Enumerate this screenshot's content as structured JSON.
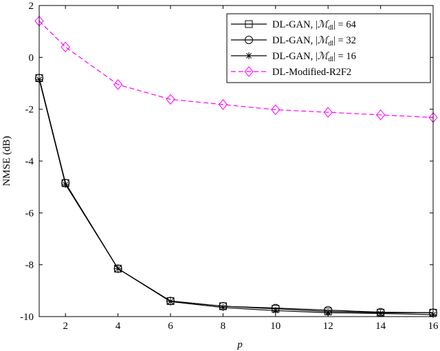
{
  "chart_data": {
    "type": "line",
    "x": [
      1,
      2,
      4,
      6,
      8,
      10,
      12,
      14,
      16
    ],
    "xlabel": "p",
    "ylabel": "NMSE (dB)",
    "xlim": [
      1,
      16
    ],
    "ylim": [
      -10,
      2
    ],
    "xticks": [
      2,
      4,
      6,
      8,
      10,
      12,
      14,
      16
    ],
    "yticks": [
      -10,
      -8,
      -6,
      -4,
      -2,
      0,
      2
    ],
    "grid": false,
    "legend_position": "top-right",
    "series": [
      {
        "name": "DL-GAN, |ℳdl| = 64",
        "legend_prefix": "DL-GAN, |",
        "legend_symbol": "ℳ",
        "legend_sub": "dl",
        "legend_suffix": "| = 64",
        "marker": "square",
        "color": "#000000",
        "dash": "solid",
        "values": [
          -0.8,
          -4.85,
          -8.15,
          -9.4,
          -9.6,
          -9.7,
          -9.8,
          -9.85,
          -9.85
        ]
      },
      {
        "name": "DL-GAN, |ℳdl| = 32",
        "legend_prefix": "DL-GAN, |",
        "legend_symbol": "ℳ",
        "legend_sub": "dl",
        "legend_suffix": "| = 32",
        "marker": "circle",
        "color": "#000000",
        "dash": "solid",
        "values": [
          -0.8,
          -4.85,
          -8.15,
          -9.4,
          -9.6,
          -9.67,
          -9.75,
          -9.83,
          -9.85
        ]
      },
      {
        "name": "DL-GAN, |ℳdl| = 16",
        "legend_prefix": "DL-GAN, |",
        "legend_symbol": "ℳ",
        "legend_sub": "dl",
        "legend_suffix": "| = 16",
        "marker": "asterisk",
        "color": "#000000",
        "dash": "solid",
        "values": [
          -0.85,
          -4.9,
          -8.15,
          -9.42,
          -9.65,
          -9.77,
          -9.85,
          -9.88,
          -9.92
        ]
      },
      {
        "name": "DL-Modified-R2F2",
        "legend_prefix": "DL-Modified-R2F2",
        "legend_symbol": "",
        "legend_sub": "",
        "legend_suffix": "",
        "marker": "diamond",
        "color": "#ff00ff",
        "dash": "dashed",
        "values": [
          1.4,
          0.4,
          -1.05,
          -1.62,
          -1.82,
          -2.02,
          -2.12,
          -2.22,
          -2.32
        ]
      }
    ]
  }
}
